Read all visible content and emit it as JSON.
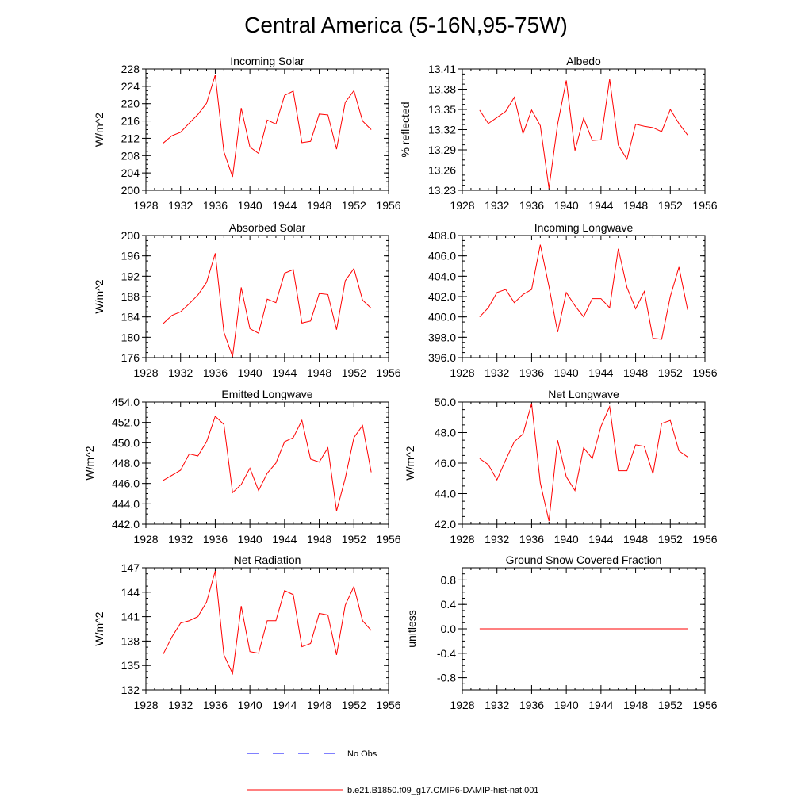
{
  "title": "Central America (5-16N,95-75W)",
  "colors": {
    "model": "#ff0000",
    "obs": "#0000ff"
  },
  "legend": [
    {
      "label": "No Obs",
      "style": "dashed",
      "color": "#0000ff"
    },
    {
      "label": "b.e21.B1850.f09_g17.CMIP6-DAMIP-hist-nat.001",
      "style": "solid",
      "color": "#ff0000"
    }
  ],
  "chart_data": [
    {
      "type": "line",
      "title": "Incoming Solar",
      "ylabel": "W/m^2",
      "xlim": [
        1928,
        1956
      ],
      "ylim": [
        200,
        228
      ],
      "xticks": [
        1928,
        1932,
        1936,
        1940,
        1944,
        1948,
        1952,
        1956
      ],
      "yticks": [
        "200",
        "204",
        "208",
        "212",
        "216",
        "220",
        "224",
        "228"
      ],
      "x": [
        1930,
        1931,
        1932,
        1933,
        1934,
        1935,
        1936,
        1937,
        1938,
        1939,
        1940,
        1941,
        1942,
        1943,
        1944,
        1945,
        1946,
        1947,
        1948,
        1949,
        1950,
        1951,
        1952,
        1953,
        1954
      ],
      "series": [
        {
          "values": [
            210.9,
            212.6,
            213.4,
            215.5,
            217.5,
            220.1,
            226.6,
            208.9,
            203.1,
            219.0,
            210.0,
            208.5,
            216.2,
            215.3,
            221.9,
            222.9,
            211.0,
            211.3,
            217.6,
            217.4,
            209.5,
            220.3,
            223.0,
            216.0,
            214.0
          ]
        }
      ]
    },
    {
      "type": "line",
      "title": "Albedo",
      "ylabel": "% reflected",
      "xlim": [
        1928,
        1956
      ],
      "ylim": [
        13.23,
        13.41
      ],
      "xticks": [
        1928,
        1932,
        1936,
        1940,
        1944,
        1948,
        1952,
        1956
      ],
      "yticks": [
        "13.23",
        "13.26",
        "13.29",
        "13.32",
        "13.35",
        "13.38",
        "13.41"
      ],
      "x": [
        1930,
        1931,
        1932,
        1933,
        1934,
        1935,
        1936,
        1937,
        1938,
        1939,
        1940,
        1941,
        1942,
        1943,
        1944,
        1945,
        1946,
        1947,
        1948,
        1949,
        1950,
        1951,
        1952,
        1953,
        1954
      ],
      "series": [
        {
          "values": [
            13.349,
            13.329,
            13.338,
            13.347,
            13.368,
            13.314,
            13.349,
            13.326,
            13.233,
            13.328,
            13.393,
            13.289,
            13.337,
            13.304,
            13.305,
            13.395,
            13.297,
            13.276,
            13.328,
            13.325,
            13.323,
            13.317,
            13.35,
            13.329,
            13.312
          ]
        }
      ]
    },
    {
      "type": "line",
      "title": "Absorbed Solar",
      "ylabel": "W/m^2",
      "xlim": [
        1928,
        1956
      ],
      "ylim": [
        176,
        200
      ],
      "xticks": [
        1928,
        1932,
        1936,
        1940,
        1944,
        1948,
        1952,
        1956
      ],
      "yticks": [
        "176",
        "180",
        "184",
        "188",
        "192",
        "196",
        "200"
      ],
      "x": [
        1930,
        1931,
        1932,
        1933,
        1934,
        1935,
        1936,
        1937,
        1938,
        1939,
        1940,
        1941,
        1942,
        1943,
        1944,
        1945,
        1946,
        1947,
        1948,
        1949,
        1950,
        1951,
        1952,
        1953,
        1954
      ],
      "series": [
        {
          "values": [
            182.7,
            184.3,
            185.0,
            186.6,
            188.3,
            190.8,
            196.5,
            181.0,
            176.2,
            189.8,
            181.7,
            180.8,
            187.5,
            186.8,
            192.6,
            193.3,
            182.8,
            183.2,
            188.6,
            188.4,
            181.5,
            191.1,
            193.5,
            187.3,
            185.7
          ]
        }
      ]
    },
    {
      "type": "line",
      "title": "Incoming Longwave",
      "ylabel": "",
      "xlim": [
        1928,
        1956
      ],
      "ylim": [
        396,
        408
      ],
      "xticks": [
        1928,
        1932,
        1936,
        1940,
        1944,
        1948,
        1952,
        1956
      ],
      "yticks": [
        "396.0",
        "398.0",
        "400.0",
        "402.0",
        "404.0",
        "406.0",
        "408.0"
      ],
      "x": [
        1930,
        1931,
        1932,
        1933,
        1934,
        1935,
        1936,
        1937,
        1938,
        1939,
        1940,
        1941,
        1942,
        1943,
        1944,
        1945,
        1946,
        1947,
        1948,
        1949,
        1950,
        1951,
        1952,
        1953,
        1954
      ],
      "series": [
        {
          "values": [
            400.0,
            400.9,
            402.4,
            402.7,
            401.4,
            402.2,
            402.7,
            407.1,
            403.0,
            398.5,
            402.4,
            401.1,
            400.0,
            401.8,
            401.8,
            400.9,
            406.7,
            402.9,
            400.8,
            402.5,
            397.9,
            397.8,
            402.0,
            404.9,
            400.7
          ]
        }
      ]
    },
    {
      "type": "line",
      "title": "Emitted Longwave",
      "ylabel": "W/m^2",
      "xlim": [
        1928,
        1956
      ],
      "ylim": [
        442,
        454
      ],
      "xticks": [
        1928,
        1932,
        1936,
        1940,
        1944,
        1948,
        1952,
        1956
      ],
      "yticks": [
        "442.0",
        "444.0",
        "446.0",
        "448.0",
        "450.0",
        "452.0",
        "454.0"
      ],
      "x": [
        1930,
        1931,
        1932,
        1933,
        1934,
        1935,
        1936,
        1937,
        1938,
        1939,
        1940,
        1941,
        1942,
        1943,
        1944,
        1945,
        1946,
        1947,
        1948,
        1949,
        1950,
        1951,
        1952,
        1953,
        1954
      ],
      "series": [
        {
          "values": [
            446.3,
            446.8,
            447.3,
            448.9,
            448.7,
            450.1,
            452.6,
            451.8,
            445.1,
            445.9,
            447.5,
            445.3,
            447.0,
            448.0,
            450.1,
            450.5,
            452.2,
            448.4,
            448.1,
            449.5,
            443.3,
            446.5,
            450.5,
            451.7,
            447.1
          ]
        }
      ]
    },
    {
      "type": "line",
      "title": "Net Longwave",
      "ylabel": "W/m^2",
      "xlim": [
        1928,
        1956
      ],
      "ylim": [
        42,
        50
      ],
      "xticks": [
        1928,
        1932,
        1936,
        1940,
        1944,
        1948,
        1952,
        1956
      ],
      "yticks": [
        "42.0",
        "44.0",
        "46.0",
        "48.0",
        "50.0"
      ],
      "x": [
        1930,
        1931,
        1932,
        1933,
        1934,
        1935,
        1936,
        1937,
        1938,
        1939,
        1940,
        1941,
        1942,
        1943,
        1944,
        1945,
        1946,
        1947,
        1948,
        1949,
        1950,
        1951,
        1952,
        1953,
        1954
      ],
      "series": [
        {
          "values": [
            46.3,
            45.9,
            44.9,
            46.2,
            47.4,
            47.9,
            49.9,
            44.7,
            42.2,
            47.5,
            45.1,
            44.2,
            47.0,
            46.3,
            48.4,
            49.7,
            45.5,
            45.5,
            47.2,
            47.1,
            45.3,
            48.6,
            48.8,
            46.8,
            46.4
          ]
        }
      ]
    },
    {
      "type": "line",
      "title": "Net Radiation",
      "ylabel": "W/m^2",
      "xlim": [
        1928,
        1956
      ],
      "ylim": [
        132,
        147
      ],
      "xticks": [
        1928,
        1932,
        1936,
        1940,
        1944,
        1948,
        1952,
        1956
      ],
      "yticks": [
        "132",
        "135",
        "138",
        "141",
        "144",
        "147"
      ],
      "x": [
        1930,
        1931,
        1932,
        1933,
        1934,
        1935,
        1936,
        1937,
        1938,
        1939,
        1940,
        1941,
        1942,
        1943,
        1944,
        1945,
        1946,
        1947,
        1948,
        1949,
        1950,
        1951,
        1952,
        1953,
        1954
      ],
      "series": [
        {
          "values": [
            136.4,
            138.5,
            140.2,
            140.5,
            141.0,
            142.8,
            146.6,
            136.3,
            134.0,
            142.3,
            136.7,
            136.5,
            140.5,
            140.5,
            144.2,
            143.7,
            137.3,
            137.7,
            141.4,
            141.2,
            136.3,
            142.4,
            144.7,
            140.5,
            139.3
          ]
        }
      ]
    },
    {
      "type": "line",
      "title": "Ground Snow Covered Fraction",
      "ylabel": "unitless",
      "xlim": [
        1928,
        1956
      ],
      "ylim": [
        -1.0,
        1.0
      ],
      "xticks": [
        1928,
        1932,
        1936,
        1940,
        1944,
        1948,
        1952,
        1956
      ],
      "yticks": [
        "-0.8",
        "-0.4",
        "0.0",
        "0.4",
        "0.8"
      ],
      "x": [
        1930,
        1931,
        1932,
        1933,
        1934,
        1935,
        1936,
        1937,
        1938,
        1939,
        1940,
        1941,
        1942,
        1943,
        1944,
        1945,
        1946,
        1947,
        1948,
        1949,
        1950,
        1951,
        1952,
        1953,
        1954
      ],
      "series": [
        {
          "values": [
            0,
            0,
            0,
            0,
            0,
            0,
            0,
            0,
            0,
            0,
            0,
            0,
            0,
            0,
            0,
            0,
            0,
            0,
            0,
            0,
            0,
            0,
            0,
            0,
            0
          ]
        }
      ]
    }
  ]
}
